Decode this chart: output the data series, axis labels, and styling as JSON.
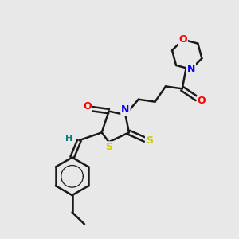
{
  "bg_color": "#e8e8e8",
  "bond_color": "#1a1a1a",
  "bond_width": 1.8,
  "atom_colors": {
    "O": "#ff0000",
    "N": "#0000ff",
    "S": "#cccc00",
    "H": "#008080",
    "C": "#1a1a1a"
  },
  "font_size": 9,
  "fig_size": [
    3.0,
    3.0
  ],
  "dpi": 100,
  "xlim": [
    0,
    10
  ],
  "ylim": [
    0,
    10
  ]
}
